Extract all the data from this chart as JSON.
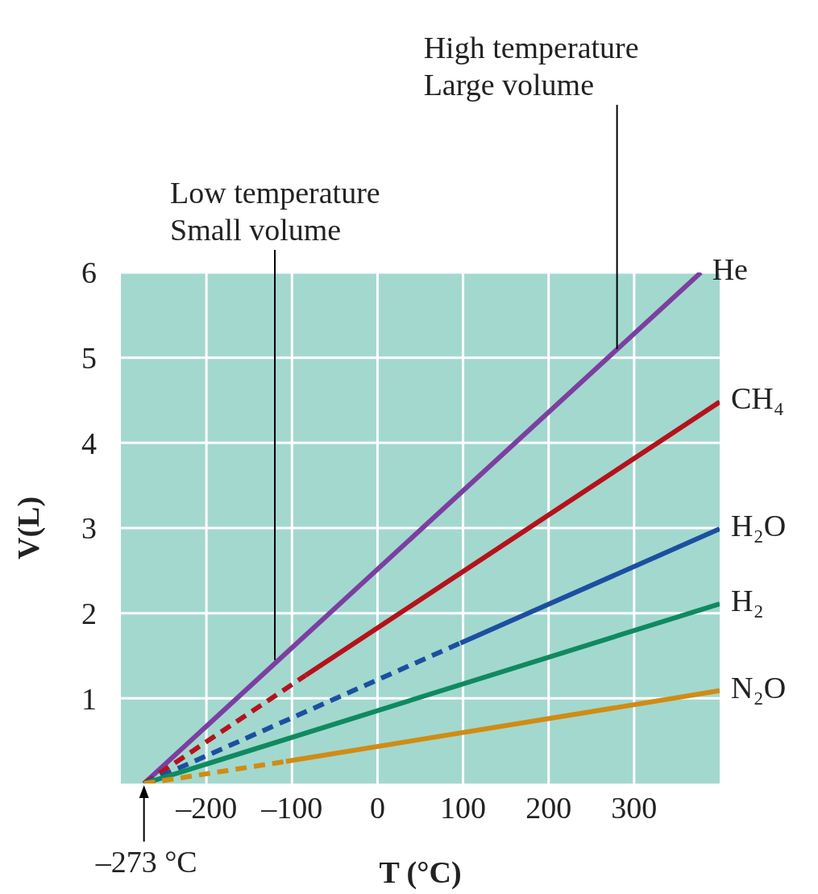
{
  "chart_data": {
    "type": "line",
    "xlabel": "T (°C)",
    "ylabel": "V(L)",
    "xlim": [
      -300,
      400
    ],
    "ylim": [
      0,
      6
    ],
    "xticks": [
      {
        "value": -200,
        "label": "–200"
      },
      {
        "value": -100,
        "label": "–100"
      },
      0,
      100,
      200,
      300
    ],
    "yticks": [
      1,
      2,
      3,
      4,
      5,
      6
    ],
    "grid": true,
    "marker": "none",
    "series": [
      {
        "name": "He",
        "color": "#7b3fa0",
        "line_style": "solid",
        "x": [
          -273,
          378
        ],
        "values": [
          0,
          6
        ]
      },
      {
        "color": "#b5121b",
        "line_style": "dashed",
        "x": [
          -273,
          -84
        ],
        "values": [
          0,
          1.27
        ]
      },
      {
        "name": "CH₄",
        "color": "#b5121b",
        "line_style": "solid",
        "x": [
          -84,
          400
        ],
        "values": [
          1.27,
          4.48
        ]
      },
      {
        "color": "#1c4fa0",
        "line_style": "dashed",
        "x": [
          -273,
          97
        ],
        "values": [
          0,
          1.65
        ]
      },
      {
        "name": "H₂O",
        "color": "#1c4fa0",
        "line_style": "solid",
        "x": [
          97,
          400
        ],
        "values": [
          1.65,
          2.99
        ]
      },
      {
        "name": "H₂",
        "color": "#0f8a5f",
        "line_style": "solid",
        "x": [
          -273,
          400
        ],
        "values": [
          0,
          2.11
        ]
      },
      {
        "color": "#d08c14",
        "line_style": "dashed",
        "x": [
          -273,
          -107
        ],
        "values": [
          0,
          0.26
        ]
      },
      {
        "name": "N₂O",
        "color": "#d08c14",
        "line_style": "solid",
        "x": [
          -107,
          400
        ],
        "values": [
          0.26,
          1.09
        ]
      }
    ],
    "annotations": [
      {
        "text": "Low temperature\nSmall volume",
        "x": -120,
        "y": 1.45
      },
      {
        "text": "High temperature\nLarge volume",
        "x": 280,
        "y": 5.1
      },
      {
        "text": "–273 °C",
        "x": -273,
        "y": 0
      }
    ]
  }
}
